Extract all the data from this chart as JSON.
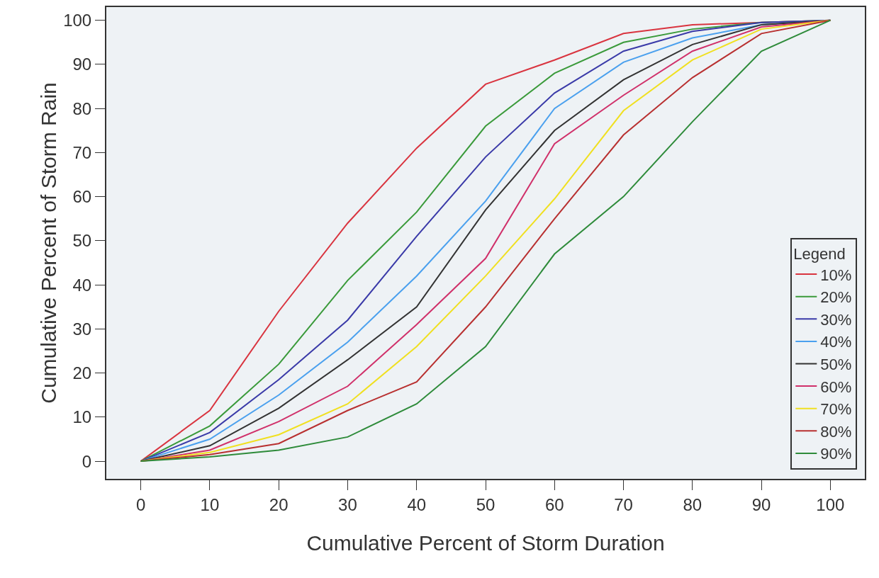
{
  "chart_data": {
    "type": "line",
    "xlabel": "Cumulative Percent of Storm Duration",
    "ylabel": "Cumulative Percent of Storm Rain",
    "legend_title": "Legend",
    "x": [
      0,
      10,
      20,
      30,
      40,
      50,
      60,
      70,
      80,
      90,
      100
    ],
    "xlim": [
      -5,
      105
    ],
    "xticks": [
      0,
      10,
      20,
      30,
      40,
      50,
      60,
      70,
      80,
      90,
      100
    ],
    "ylim": [
      -4,
      103
    ],
    "yticks": [
      0,
      10,
      20,
      30,
      40,
      50,
      60,
      70,
      80,
      90,
      100
    ],
    "grid": false,
    "legend": "bottom right",
    "marker": "none",
    "line_style": "solid",
    "series": [
      {
        "name": "10%",
        "color": "#d9343f",
        "values": [
          0,
          11.5,
          34,
          54,
          71,
          85.5,
          91,
          97,
          99,
          99.5,
          100
        ]
      },
      {
        "name": "20%",
        "color": "#3a9a3a",
        "values": [
          0,
          8,
          22,
          41,
          56.5,
          76,
          88,
          95,
          98,
          99.5,
          100
        ]
      },
      {
        "name": "30%",
        "color": "#3a3aa8",
        "values": [
          0,
          6.5,
          18.5,
          32,
          51,
          69,
          83.5,
          93,
          97.5,
          99.5,
          100
        ]
      },
      {
        "name": "40%",
        "color": "#4aa0ee",
        "values": [
          0,
          5,
          15,
          27,
          42,
          59,
          80,
          90.5,
          96,
          99,
          100
        ]
      },
      {
        "name": "50%",
        "color": "#333333",
        "values": [
          0,
          3.5,
          12,
          23,
          35,
          57,
          75,
          86.5,
          94.5,
          99,
          100
        ]
      },
      {
        "name": "60%",
        "color": "#d0306a",
        "values": [
          0,
          2.5,
          9,
          17,
          31,
          46,
          72,
          83,
          93,
          98.5,
          100
        ]
      },
      {
        "name": "70%",
        "color": "#f0e020",
        "values": [
          0,
          2,
          6,
          13,
          26,
          42,
          59.5,
          79.5,
          91,
          98,
          100
        ]
      },
      {
        "name": "80%",
        "color": "#b83030",
        "values": [
          0,
          1.5,
          4,
          11.5,
          18,
          35,
          55,
          74,
          87,
          97,
          100
        ]
      },
      {
        "name": "90%",
        "color": "#2e8b3a",
        "values": [
          0,
          1,
          2.5,
          5.5,
          13,
          26,
          47,
          60,
          77,
          93,
          100
        ]
      }
    ]
  }
}
